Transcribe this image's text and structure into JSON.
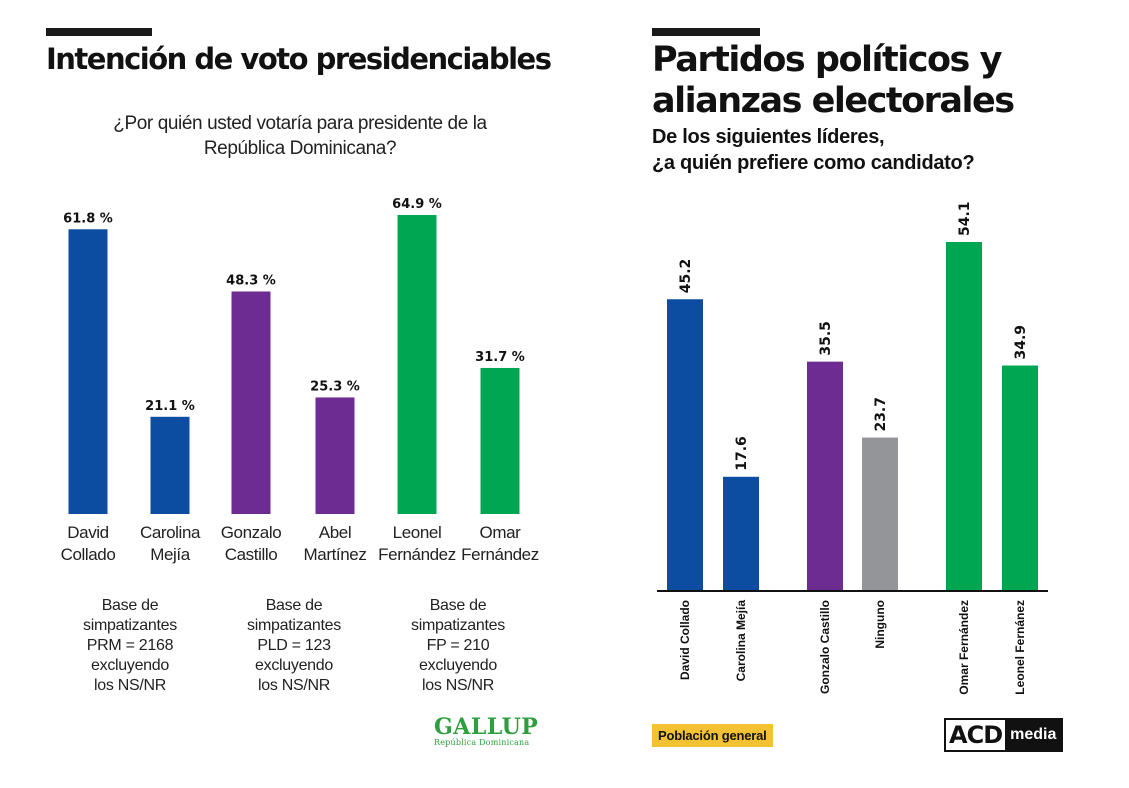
{
  "chart_data": [
    {
      "type": "bar",
      "title": "Intención de voto presidenciables",
      "subtitle": "¿Por quién usted votaría para presidente de la República Dominicana?",
      "categories": [
        "David Collado",
        "Carolina Mejía",
        "Gonzalo Castillo",
        "Abel Martínez",
        "Leonel Fernández",
        "Omar Fernández"
      ],
      "category_lines": [
        [
          "David",
          "Collado"
        ],
        [
          "Carolina",
          "Mejía"
        ],
        [
          "Gonzalo",
          "Castillo"
        ],
        [
          "Abel",
          "Martínez"
        ],
        [
          "Leonel",
          "Fernández"
        ],
        [
          "Omar",
          "Fernández"
        ]
      ],
      "values": [
        61.8,
        21.1,
        48.3,
        25.3,
        64.9,
        31.7
      ],
      "value_labels": [
        "61.8 %",
        "21.1 %",
        "48.3 %",
        "25.3 %",
        "64.9 %",
        "31.7 %"
      ],
      "colors": [
        "#0c4da2",
        "#0c4da2",
        "#6d2c91",
        "#6d2c91",
        "#00a651",
        "#00a651"
      ],
      "notes": [
        [
          "Base de",
          "simpatizantes",
          "PRM = 2168",
          "excluyendo",
          "los NS/NR"
        ],
        [
          "Base de",
          "simpatizantes",
          "PLD = 123",
          "excluyendo",
          "los NS/NR"
        ],
        [
          "Base de",
          "simpatizantes",
          "FP = 210",
          "excluyendo",
          "los NS/NR"
        ]
      ],
      "grid": false,
      "legend": "none"
    },
    {
      "type": "bar",
      "title": "Partidos políticos y alianzas electorales",
      "subtitle": "De los siguientes líderes, ¿a quién prefiere como candidato?",
      "categories": [
        "David Collado",
        "Carolina Mejía",
        "Gonzalo Castillo",
        "Ninguno",
        "Omar Fernández",
        "Leonel Fernánez"
      ],
      "values": [
        45.2,
        17.6,
        35.5,
        23.7,
        54.1,
        34.9
      ],
      "value_labels": [
        "45.2",
        "17.6",
        "35.5",
        "23.7",
        "54.1",
        "34.9"
      ],
      "colors": [
        "#0c4da2",
        "#0c4da2",
        "#6d2c91",
        "#939598",
        "#00a651",
        "#00a651"
      ],
      "grid": false,
      "legend": "none"
    }
  ],
  "left": {
    "title_line": "Intención de voto presidenciables",
    "subtitle_1": "¿Por quién usted votaría para presidente de la",
    "subtitle_2": "República Dominicana?",
    "logo_main": "GALLUP",
    "logo_sub": "República Dominicana"
  },
  "right": {
    "title_1": "Partidos políticos y",
    "title_2": "alianzas electorales",
    "subtitle_1": "De los siguientes líderes,",
    "subtitle_2": "¿a quién prefiere como candidato?",
    "badge": "Población general",
    "logo_a": "ACD",
    "logo_b": "media"
  },
  "colors": {
    "blue": "#0c4da2",
    "purple": "#6d2c91",
    "green": "#00a651",
    "gray": "#939598",
    "badge": "#f2c233",
    "gallup": "#2e9e3e"
  }
}
